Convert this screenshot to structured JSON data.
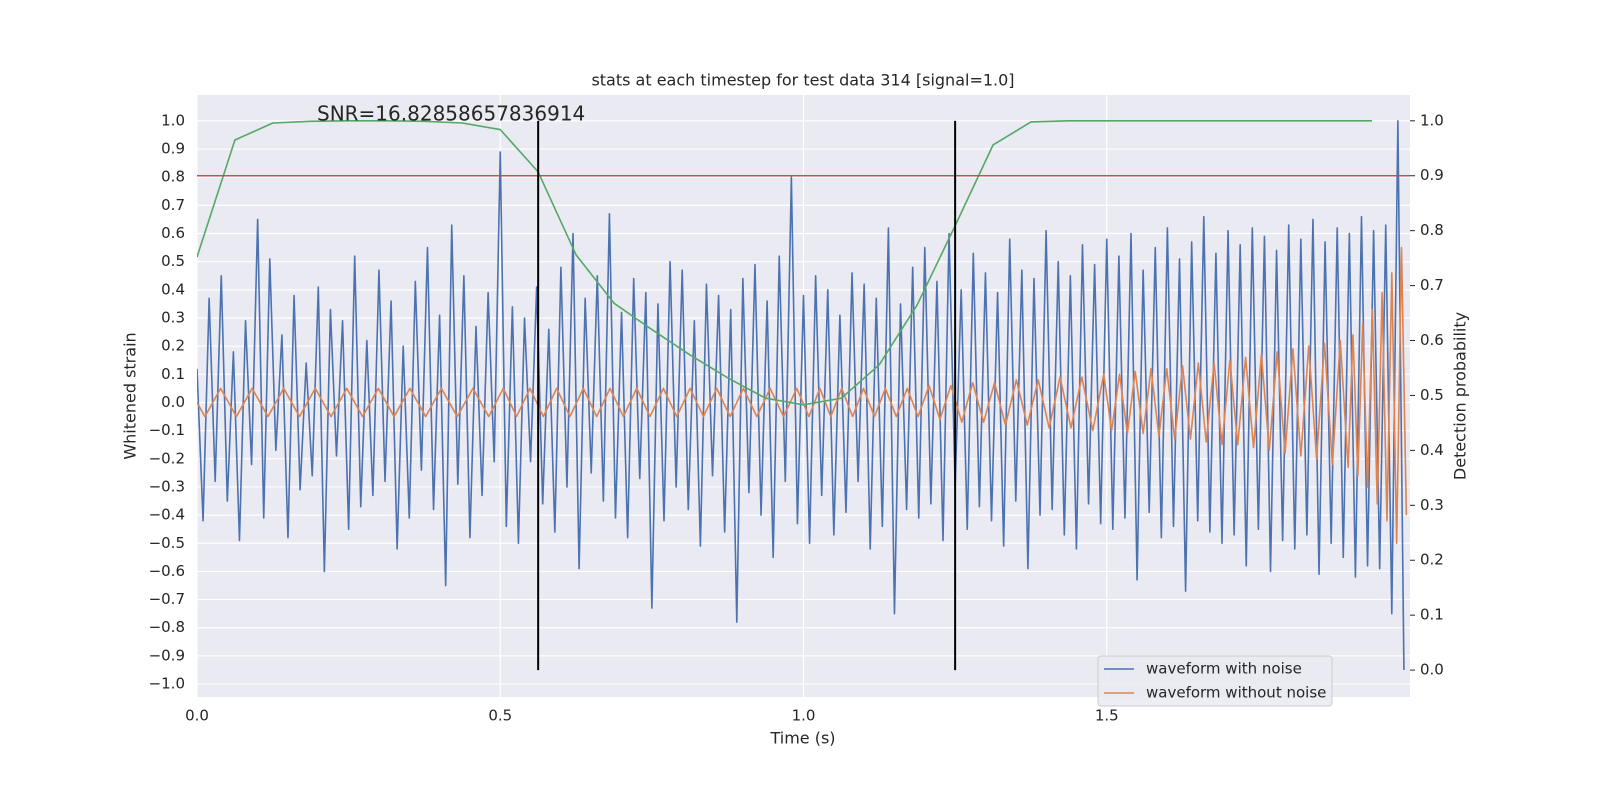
{
  "chart_data": {
    "type": "line",
    "title": "stats at each timestep for test data 314 [signal=1.0]",
    "annotation": "SNR=16.82858657836914",
    "xlabel": "Time (s)",
    "ylabel": "Whitened strain",
    "y2label": "Detection probability",
    "grid": true,
    "legend": "lower right",
    "xlim": [
      0,
      2
    ],
    "ylim": [
      -1.046,
      1.092
    ],
    "y2lim": [
      -0.049,
      1.047
    ],
    "xticks": [
      {
        "value": 0,
        "label": "0.0"
      },
      0.5,
      {
        "value": 1,
        "label": "1.0"
      },
      1.5
    ],
    "yticks": [
      {
        "value": -1,
        "label": "−1.0"
      },
      {
        "value": -0.9,
        "label": "−0.9"
      },
      {
        "value": -0.8,
        "label": "−0.8"
      },
      {
        "value": -0.7,
        "label": "−0.7"
      },
      {
        "value": -0.6,
        "label": "−0.6"
      },
      {
        "value": -0.5,
        "label": "−0.5"
      },
      {
        "value": -0.4,
        "label": "−0.4"
      },
      {
        "value": -0.3,
        "label": "−0.3"
      },
      {
        "value": -0.2,
        "label": "−0.2"
      },
      {
        "value": -0.1,
        "label": "−0.1"
      },
      {
        "value": 0,
        "label": "0.0"
      },
      0.1,
      0.2,
      0.3,
      0.4,
      0.5,
      0.6,
      0.7,
      0.8,
      0.9,
      {
        "value": 1,
        "label": "1.0"
      }
    ],
    "y2ticks": [
      {
        "value": 0,
        "label": "0.0"
      },
      0.1,
      0.2,
      0.3,
      0.4,
      0.5,
      0.6,
      0.7,
      0.8,
      0.9,
      {
        "value": 1,
        "label": "1.0"
      }
    ],
    "series": [
      {
        "name": "waveform with noise",
        "color": "#4c72b0",
        "x": [
          0,
          0.01,
          0.02,
          0.03,
          0.04,
          0.05,
          0.06,
          0.07,
          0.08,
          0.09,
          0.1,
          0.11,
          0.12,
          0.13,
          0.14,
          0.15,
          0.16,
          0.17,
          0.18,
          0.19,
          0.2,
          0.21,
          0.22,
          0.23,
          0.24,
          0.25,
          0.26,
          0.27,
          0.28,
          0.29,
          0.3,
          0.31,
          0.32,
          0.33,
          0.34,
          0.35,
          0.36,
          0.37,
          0.38,
          0.39,
          0.4,
          0.41,
          0.42,
          0.43,
          0.44,
          0.45,
          0.46,
          0.47,
          0.48,
          0.49,
          0.5,
          0.51,
          0.52,
          0.53,
          0.54,
          0.55,
          0.56,
          0.57,
          0.58,
          0.59,
          0.6,
          0.61,
          0.62,
          0.63,
          0.64,
          0.65,
          0.66,
          0.67,
          0.68,
          0.69,
          0.7,
          0.71,
          0.72,
          0.73,
          0.74,
          0.75,
          0.76,
          0.77,
          0.78,
          0.79,
          0.8,
          0.81,
          0.82,
          0.83,
          0.84,
          0.85,
          0.86,
          0.87,
          0.88,
          0.89,
          0.9,
          0.91,
          0.92,
          0.93,
          0.94,
          0.95,
          0.96,
          0.97,
          0.98,
          0.99,
          1,
          1.01,
          1.02,
          1.03,
          1.04,
          1.05,
          1.06,
          1.07,
          1.08,
          1.09,
          1.1,
          1.11,
          1.12,
          1.13,
          1.14,
          1.15,
          1.16,
          1.17,
          1.18,
          1.19,
          1.2,
          1.21,
          1.22,
          1.23,
          1.24,
          1.25,
          1.26,
          1.27,
          1.28,
          1.29,
          1.3,
          1.31,
          1.32,
          1.33,
          1.34,
          1.35,
          1.36,
          1.37,
          1.38,
          1.39,
          1.4,
          1.41,
          1.42,
          1.43,
          1.44,
          1.45,
          1.46,
          1.47,
          1.48,
          1.49,
          1.5,
          1.51,
          1.52,
          1.53,
          1.54,
          1.55,
          1.56,
          1.57,
          1.58,
          1.59,
          1.6,
          1.61,
          1.62,
          1.63,
          1.64,
          1.65,
          1.66,
          1.67,
          1.68,
          1.69,
          1.7,
          1.71,
          1.72,
          1.73,
          1.74,
          1.75,
          1.76,
          1.77,
          1.78,
          1.79,
          1.8,
          1.81,
          1.82,
          1.83,
          1.84,
          1.85,
          1.86,
          1.87,
          1.88,
          1.89,
          1.9,
          1.91,
          1.92,
          1.93,
          1.94,
          1.95,
          1.96,
          1.97,
          1.98,
          1.99
        ],
        "values": [
          0.12,
          -0.42,
          0.37,
          -0.28,
          0.45,
          -0.35,
          0.18,
          -0.49,
          0.29,
          -0.22,
          0.65,
          -0.41,
          0.51,
          -0.17,
          0.24,
          -0.48,
          0.38,
          -0.31,
          0.14,
          -0.26,
          0.41,
          -0.6,
          0.33,
          -0.19,
          0.29,
          -0.45,
          0.52,
          -0.37,
          0.22,
          -0.33,
          0.47,
          -0.28,
          0.36,
          -0.52,
          0.2,
          -0.41,
          0.43,
          -0.24,
          0.55,
          -0.38,
          0.31,
          -0.65,
          0.63,
          -0.29,
          0.45,
          -0.48,
          0.27,
          -0.33,
          0.39,
          -0.21,
          0.89,
          -0.44,
          0.34,
          -0.5,
          0.3,
          -0.21,
          0.41,
          -0.36,
          0.26,
          -0.46,
          0.48,
          -0.3,
          0.6,
          -0.59,
          0.37,
          -0.25,
          0.45,
          -0.35,
          0.67,
          -0.41,
          0.32,
          -0.48,
          0.44,
          -0.27,
          0.39,
          -0.73,
          0.35,
          -0.42,
          0.5,
          -0.3,
          0.47,
          -0.38,
          0.29,
          -0.51,
          0.42,
          -0.26,
          0.38,
          -0.46,
          0.33,
          -0.78,
          0.44,
          -0.32,
          0.49,
          -0.4,
          0.36,
          -0.55,
          0.52,
          -0.28,
          0.8,
          -0.43,
          0.38,
          -0.5,
          0.45,
          -0.33,
          0.4,
          -0.47,
          0.31,
          -0.39,
          0.46,
          -0.28,
          0.42,
          -0.52,
          0.37,
          -0.44,
          0.62,
          -0.75,
          0.35,
          -0.38,
          0.48,
          -0.41,
          0.55,
          -0.36,
          0.43,
          -0.49,
          0.6,
          -0.3,
          0.4,
          -0.45,
          0.53,
          -0.37,
          0.46,
          -0.42,
          0.39,
          -0.51,
          0.58,
          -0.35,
          0.47,
          -0.59,
          0.44,
          -0.4,
          0.61,
          -0.38,
          0.5,
          -0.47,
          0.45,
          -0.52,
          0.56,
          -0.36,
          0.49,
          -0.43,
          0.58,
          -0.45,
          0.52,
          -0.41,
          0.6,
          -0.63,
          0.47,
          -0.39,
          0.55,
          -0.48,
          0.62,
          -0.44,
          0.51,
          -0.67,
          0.57,
          -0.42,
          0.66,
          -0.46,
          0.53,
          -0.5,
          0.61,
          -0.47,
          0.56,
          -0.58,
          0.62,
          -0.45,
          0.59,
          -0.6,
          0.54,
          -0.49,
          0.63,
          -0.52,
          0.58,
          -0.47,
          0.65,
          -0.61,
          0.57,
          -0.5,
          0.62,
          -0.55,
          0.6,
          -0.62,
          0.66,
          -0.58,
          0.61,
          -0.59,
          0.63,
          -0.75,
          1.0,
          -0.95
        ]
      },
      {
        "name": "waveform without noise",
        "color": "#dd8452",
        "x": [
          0,
          0.013,
          0.039,
          0.065,
          0.091,
          0.117,
          0.143,
          0.169,
          0.195,
          0.221,
          0.247,
          0.273,
          0.299,
          0.325,
          0.351,
          0.377,
          0.403,
          0.429,
          0.455,
          0.481,
          0.505,
          0.527,
          0.549,
          0.571,
          0.593,
          0.615,
          0.637,
          0.659,
          0.681,
          0.703,
          0.725,
          0.747,
          0.769,
          0.791,
          0.813,
          0.835,
          0.857,
          0.879,
          0.901,
          0.923,
          0.945,
          0.967,
          0.989,
          1.009,
          1.027,
          1.045,
          1.063,
          1.081,
          1.099,
          1.117,
          1.135,
          1.153,
          1.171,
          1.189,
          1.207,
          1.225,
          1.243,
          1.261,
          1.279,
          1.297,
          1.315,
          1.333,
          1.351,
          1.369,
          1.387,
          1.405,
          1.423,
          1.441,
          1.459,
          1.477,
          1.495,
          1.508,
          1.521,
          1.534,
          1.547,
          1.56,
          1.573,
          1.586,
          1.599,
          1.612,
          1.625,
          1.638,
          1.651,
          1.664,
          1.677,
          1.69,
          1.703,
          1.716,
          1.729,
          1.742,
          1.755,
          1.768,
          1.781,
          1.794,
          1.807,
          1.82,
          1.833,
          1.846,
          1.859,
          1.872,
          1.885,
          1.898,
          1.906,
          1.914,
          1.922,
          1.93,
          1.938,
          1.946,
          1.954,
          1.962,
          1.97,
          1.978,
          1.986,
          1.994
        ],
        "values": [
          0,
          -0.05,
          0.05,
          -0.05,
          0.05,
          -0.05,
          0.05,
          -0.05,
          0.05,
          -0.05,
          0.05,
          -0.05,
          0.05,
          -0.05,
          0.05,
          -0.05,
          0.05,
          -0.05,
          0.05,
          -0.05,
          0.05,
          -0.05,
          0.05,
          -0.05,
          0.05,
          -0.05,
          0.05,
          -0.05,
          0.05,
          -0.05,
          0.05,
          -0.05,
          0.05,
          -0.05,
          0.05,
          -0.05,
          0.05,
          -0.05,
          0.05,
          -0.05,
          0.05,
          -0.05,
          0.05,
          -0.05,
          0.05,
          -0.05,
          0.05,
          -0.05,
          0.05,
          -0.05,
          0.05,
          -0.05,
          0.05,
          -0.05,
          0.06,
          -0.06,
          0.06,
          -0.07,
          0.07,
          -0.07,
          0.07,
          -0.08,
          0.08,
          -0.08,
          0.08,
          -0.09,
          0.09,
          -0.09,
          0.09,
          -0.1,
          0.1,
          -0.1,
          0.1,
          -0.11,
          0.11,
          -0.11,
          0.12,
          -0.12,
          0.12,
          -0.13,
          0.13,
          -0.13,
          0.14,
          -0.14,
          0.14,
          -0.15,
          0.15,
          -0.15,
          0.16,
          -0.16,
          0.17,
          -0.17,
          0.18,
          -0.18,
          0.19,
          -0.19,
          0.2,
          -0.2,
          0.21,
          -0.22,
          0.22,
          -0.23,
          0.24,
          -0.26,
          0.28,
          -0.3,
          0.33,
          -0.36,
          0.39,
          -0.42,
          0.46,
          -0.5,
          0.55,
          -0.4
        ]
      },
      {
        "color": "#55a868",
        "axis": "y2",
        "x": [
          0,
          0.0625,
          0.125,
          0.1875,
          0.25,
          0.3125,
          0.375,
          0.4375,
          0.5,
          0.5625,
          0.625,
          0.6875,
          0.75,
          0.8125,
          0.875,
          0.9375,
          1,
          1.0625,
          1.125,
          1.1875,
          1.25,
          1.3125,
          1.375,
          1.4375,
          1.5,
          1.5625,
          1.625,
          1.6875,
          1.75,
          1.8125,
          1.875,
          1.9375
        ],
        "values": [
          0.752,
          0.965,
          0.996,
          0.999,
          1,
          1,
          0.999,
          0.996,
          0.984,
          0.907,
          0.756,
          0.668,
          0.62,
          0.574,
          0.532,
          0.495,
          0.483,
          0.495,
          0.556,
          0.665,
          0.809,
          0.956,
          0.998,
          1,
          1,
          1,
          1,
          1,
          1,
          1,
          1,
          1
        ]
      }
    ],
    "hlines": [
      {
        "y": 0.9,
        "axis": "y2",
        "color": "#c44e52"
      }
    ],
    "vlines": [
      {
        "x": 0.5625,
        "ymin": 0,
        "ymax": 1,
        "axis": "y2",
        "color": "#000000"
      },
      {
        "x": 1.25,
        "ymin": 0,
        "ymax": 1,
        "axis": "y2",
        "color": "#000000"
      }
    ]
  }
}
